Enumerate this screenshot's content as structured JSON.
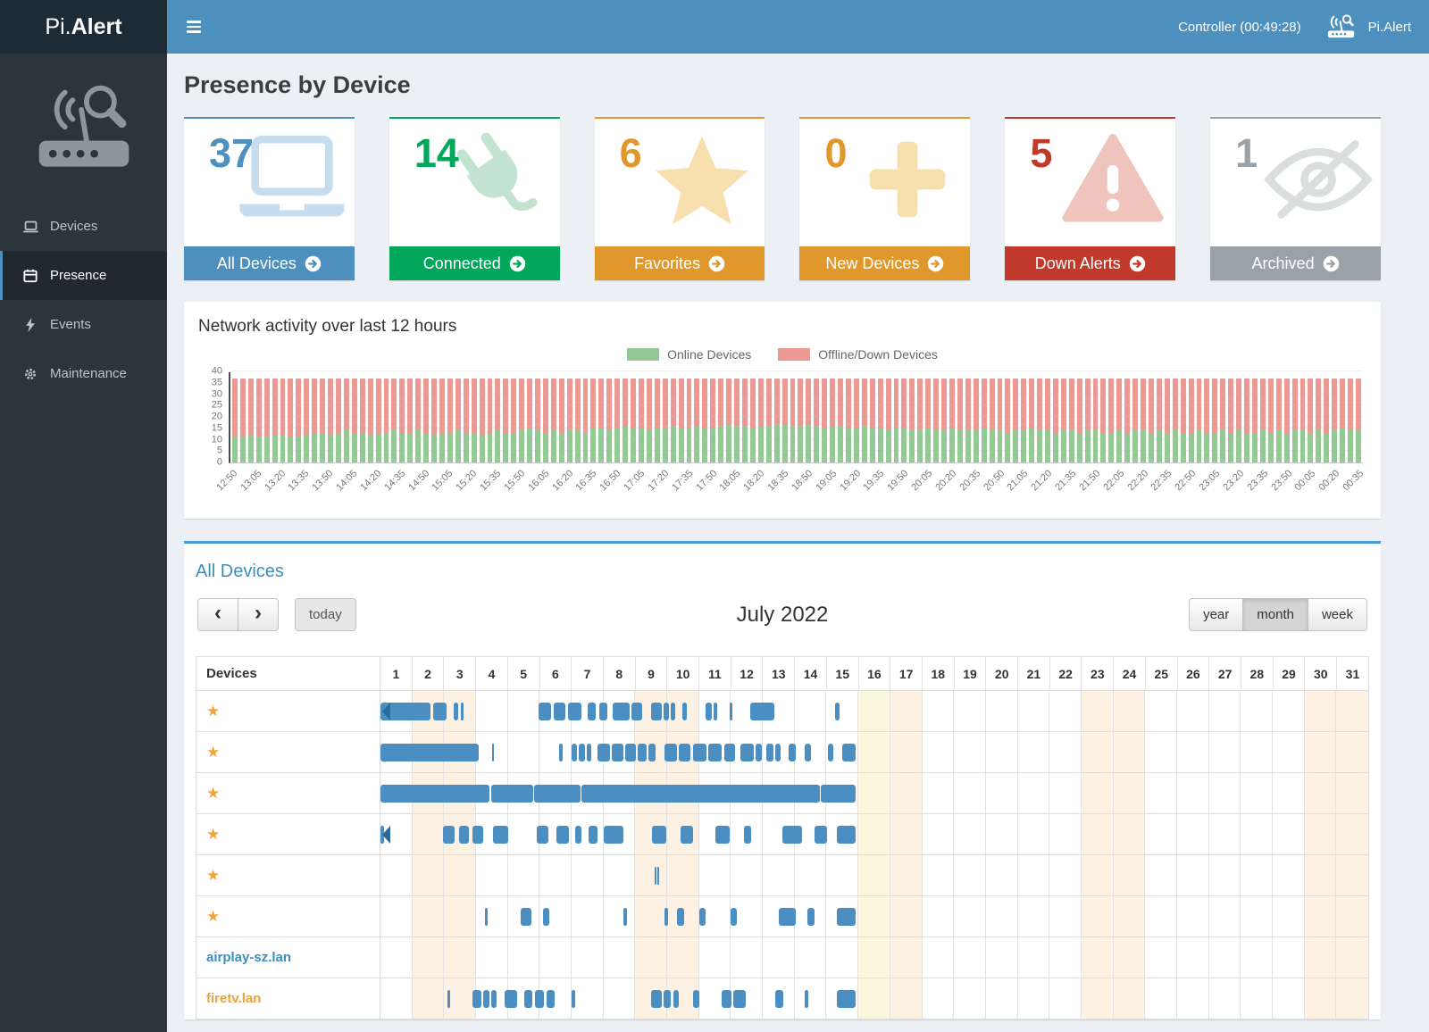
{
  "navbar": {
    "logo_prefix": "Pi.",
    "logo_suffix": "Alert",
    "controller": "Controller (00:49:28)",
    "brand": "Pi.Alert"
  },
  "sidebar": {
    "items": [
      {
        "label": "Devices",
        "icon": "laptop",
        "active": false
      },
      {
        "label": "Presence",
        "icon": "calendar",
        "active": true
      },
      {
        "label": "Events",
        "icon": "bolt",
        "active": false
      },
      {
        "label": "Maintenance",
        "icon": "gear",
        "active": false
      }
    ]
  },
  "page_title": "Presence by Device",
  "cards": [
    {
      "count": "37",
      "label": "All Devices",
      "icon": "laptop",
      "color": "#4e90bd",
      "pale": "#c5ddef"
    },
    {
      "count": "14",
      "label": "Connected",
      "icon": "plug",
      "color": "#00a65a",
      "pale": "#c2e3cf"
    },
    {
      "count": "6",
      "label": "Favorites",
      "icon": "star",
      "color": "#e0982c",
      "pale": "#f7dfae"
    },
    {
      "count": "0",
      "label": "New Devices",
      "icon": "plus",
      "color": "#e0982c",
      "pale": "#f7dfae"
    },
    {
      "count": "5",
      "label": "Down Alerts",
      "icon": "warning",
      "color": "#c0392b",
      "pale": "#eec4bd"
    },
    {
      "count": "1",
      "label": "Archived",
      "icon": "eye-slash",
      "color": "#98a2a8",
      "pale": "#dadedf"
    }
  ],
  "chart_data": {
    "type": "bar",
    "stacked": true,
    "title": "Network activity over last 12 hours",
    "legend_position": "top",
    "series": [
      {
        "name": "Online Devices",
        "color": "#93c993"
      },
      {
        "name": "Offline/Down Devices",
        "color": "#ea9a92"
      }
    ],
    "total_devices": 37,
    "offline_rule": "offline = total_devices - online",
    "ylim": [
      0,
      40
    ],
    "yticks": [
      0,
      5,
      10,
      15,
      20,
      25,
      30,
      35,
      40
    ],
    "x_label_every": 3,
    "x_tick_labels": [
      "12:50",
      "13:05",
      "13:20",
      "13:35",
      "13:50",
      "14:05",
      "14:20",
      "14:35",
      "14:50",
      "15:05",
      "15:20",
      "15:35",
      "15:50",
      "16:05",
      "16:20",
      "16:35",
      "16:50",
      "17:05",
      "17:20",
      "17:35",
      "17:50",
      "18:05",
      "18:20",
      "18:35",
      "18:50",
      "19:05",
      "19:20",
      "19:35",
      "19:50",
      "20:05",
      "20:20",
      "20:35",
      "20:50",
      "21:05",
      "21:20",
      "21:35",
      "21:50",
      "22:05",
      "22:20",
      "22:35",
      "22:50",
      "23:05",
      "23:20",
      "23:35",
      "23:50",
      "00:05",
      "00:20",
      "00:35"
    ],
    "online_values": [
      11,
      11,
      12,
      11,
      11,
      12,
      12,
      11,
      11,
      12,
      13,
      13,
      12,
      13,
      14,
      13,
      13,
      12,
      13,
      13,
      14,
      13,
      13,
      14,
      13,
      12,
      13,
      13,
      14,
      13,
      13,
      12,
      13,
      14,
      13,
      13,
      14,
      15,
      14,
      13,
      14,
      13,
      14,
      14,
      13,
      15,
      15,
      14,
      15,
      16,
      15,
      15,
      14,
      15,
      15,
      16,
      15,
      15,
      16,
      15,
      15,
      16,
      17,
      16,
      16,
      15,
      16,
      16,
      17,
      17,
      16,
      16,
      17,
      16,
      15,
      16,
      16,
      15,
      15,
      16,
      15,
      15,
      14,
      15,
      15,
      14,
      14,
      15,
      14,
      14,
      15,
      14,
      14,
      14,
      15,
      14,
      14,
      13,
      14,
      14,
      15,
      14,
      14,
      13,
      14,
      14,
      13,
      14,
      14,
      13,
      13,
      14,
      13,
      14,
      14,
      13,
      14,
      13,
      14,
      13,
      13,
      14,
      13,
      13,
      14,
      13,
      14,
      13,
      13,
      14,
      13,
      14,
      13,
      14,
      14,
      13,
      14,
      13,
      14,
      15,
      14,
      14
    ]
  },
  "calendar": {
    "panel_title": "All Devices",
    "month_title": "July 2022",
    "nav": {
      "prev": "‹",
      "next": "›",
      "today": "today"
    },
    "views": [
      "year",
      "month",
      "week"
    ],
    "active_view": "month",
    "devices_header": "Devices",
    "days": 31,
    "today_day": 16,
    "weekend_days": [
      2,
      3,
      9,
      10,
      16,
      17,
      23,
      24,
      30,
      31
    ],
    "colors": {
      "bar": "#4b8fc2",
      "bar_arrow": "#2c6b99",
      "weekend_bg": "#fdf1e3",
      "today_bg": "#fbf7dd",
      "star": "#f0a33c"
    },
    "rows": [
      {
        "favorite": true,
        "name": "",
        "continues_left": true,
        "segments": [
          [
            1,
            2.58
          ],
          [
            2.64,
            3.08
          ],
          [
            3.3,
            3.44
          ],
          [
            3.52,
            3.62
          ],
          [
            5.95,
            6.35
          ],
          [
            6.45,
            6.8
          ],
          [
            6.9,
            7.3
          ],
          [
            7.5,
            7.76
          ],
          [
            7.86,
            8.12
          ],
          [
            8.3,
            8.82
          ],
          [
            8.88,
            9.2
          ],
          [
            9.5,
            9.82
          ],
          [
            9.88,
            10.06
          ],
          [
            10.12,
            10.26
          ],
          [
            10.46,
            10.62
          ],
          [
            11.2,
            11.4
          ],
          [
            11.46,
            11.58
          ],
          [
            11.95,
            12.03
          ],
          [
            12.6,
            13.36
          ],
          [
            15.28,
            15.4
          ]
        ]
      },
      {
        "favorite": true,
        "name": "",
        "segments": [
          [
            1,
            4.08
          ],
          [
            4.5,
            4.56
          ],
          [
            6.6,
            6.73
          ],
          [
            7.0,
            7.16
          ],
          [
            7.22,
            7.42
          ],
          [
            7.48,
            7.62
          ],
          [
            7.8,
            8.2
          ],
          [
            8.26,
            8.62
          ],
          [
            8.68,
            9.02
          ],
          [
            9.08,
            9.36
          ],
          [
            9.42,
            9.62
          ],
          [
            9.9,
            10.3
          ],
          [
            10.36,
            10.72
          ],
          [
            10.82,
            11.22
          ],
          [
            11.3,
            11.72
          ],
          [
            11.8,
            12.12
          ],
          [
            12.3,
            12.72
          ],
          [
            12.78,
            12.96
          ],
          [
            13.1,
            13.32
          ],
          [
            13.38,
            13.56
          ],
          [
            13.82,
            14.02
          ],
          [
            14.32,
            14.52
          ],
          [
            15.05,
            15.22
          ],
          [
            15.5,
            15.9
          ]
        ]
      },
      {
        "favorite": true,
        "name": "",
        "segments": [
          [
            1,
            4.42
          ],
          [
            4.47,
            5.78
          ],
          [
            5.83,
            7.27
          ],
          [
            7.32,
            14.78
          ],
          [
            14.83,
            15.9
          ]
        ]
      },
      {
        "favorite": true,
        "name": "",
        "continues_left": true,
        "segments": [
          [
            1,
            1.12
          ],
          [
            2.95,
            3.32
          ],
          [
            3.46,
            3.78
          ],
          [
            3.88,
            4.22
          ],
          [
            4.52,
            5.02
          ],
          [
            5.9,
            6.26
          ],
          [
            6.52,
            6.92
          ],
          [
            7.12,
            7.32
          ],
          [
            7.52,
            7.82
          ],
          [
            8.02,
            8.62
          ],
          [
            9.52,
            9.96
          ],
          [
            10.42,
            10.82
          ],
          [
            11.52,
            11.96
          ],
          [
            12.42,
            12.62
          ],
          [
            13.62,
            14.22
          ],
          [
            14.62,
            15.02
          ],
          [
            15.32,
            15.9
          ]
        ]
      },
      {
        "favorite": true,
        "name": "",
        "segments": [
          [
            9.6,
            9.65
          ],
          [
            9.7,
            9.74
          ]
        ]
      },
      {
        "favorite": true,
        "name": "",
        "segments": [
          [
            4.28,
            4.35
          ],
          [
            5.4,
            5.73
          ],
          [
            6.1,
            6.29
          ],
          [
            8.62,
            8.73
          ],
          [
            9.9,
            10.03
          ],
          [
            10.3,
            10.52
          ],
          [
            11.0,
            11.19
          ],
          [
            12.0,
            12.17
          ],
          [
            13.5,
            14.02
          ],
          [
            14.4,
            14.63
          ],
          [
            15.32,
            15.9
          ]
        ]
      },
      {
        "favorite": false,
        "name": "airplay-sz.lan",
        "name_color": "#3c8dbc",
        "segments": []
      },
      {
        "favorite": false,
        "name": "firetv.lan",
        "name_color": "#e8a33d",
        "segments": [
          [
            3.1,
            3.2
          ],
          [
            3.9,
            4.16
          ],
          [
            4.22,
            4.42
          ],
          [
            4.48,
            4.63
          ],
          [
            4.9,
            5.3
          ],
          [
            5.5,
            5.76
          ],
          [
            5.86,
            6.12
          ],
          [
            6.2,
            6.46
          ],
          [
            7.0,
            7.1
          ],
          [
            9.5,
            9.82
          ],
          [
            9.88,
            10.12
          ],
          [
            10.18,
            10.36
          ],
          [
            10.8,
            11.02
          ],
          [
            11.7,
            12.02
          ],
          [
            12.08,
            12.46
          ],
          [
            13.4,
            13.64
          ],
          [
            14.3,
            14.44
          ],
          [
            15.32,
            15.9
          ]
        ]
      }
    ]
  }
}
